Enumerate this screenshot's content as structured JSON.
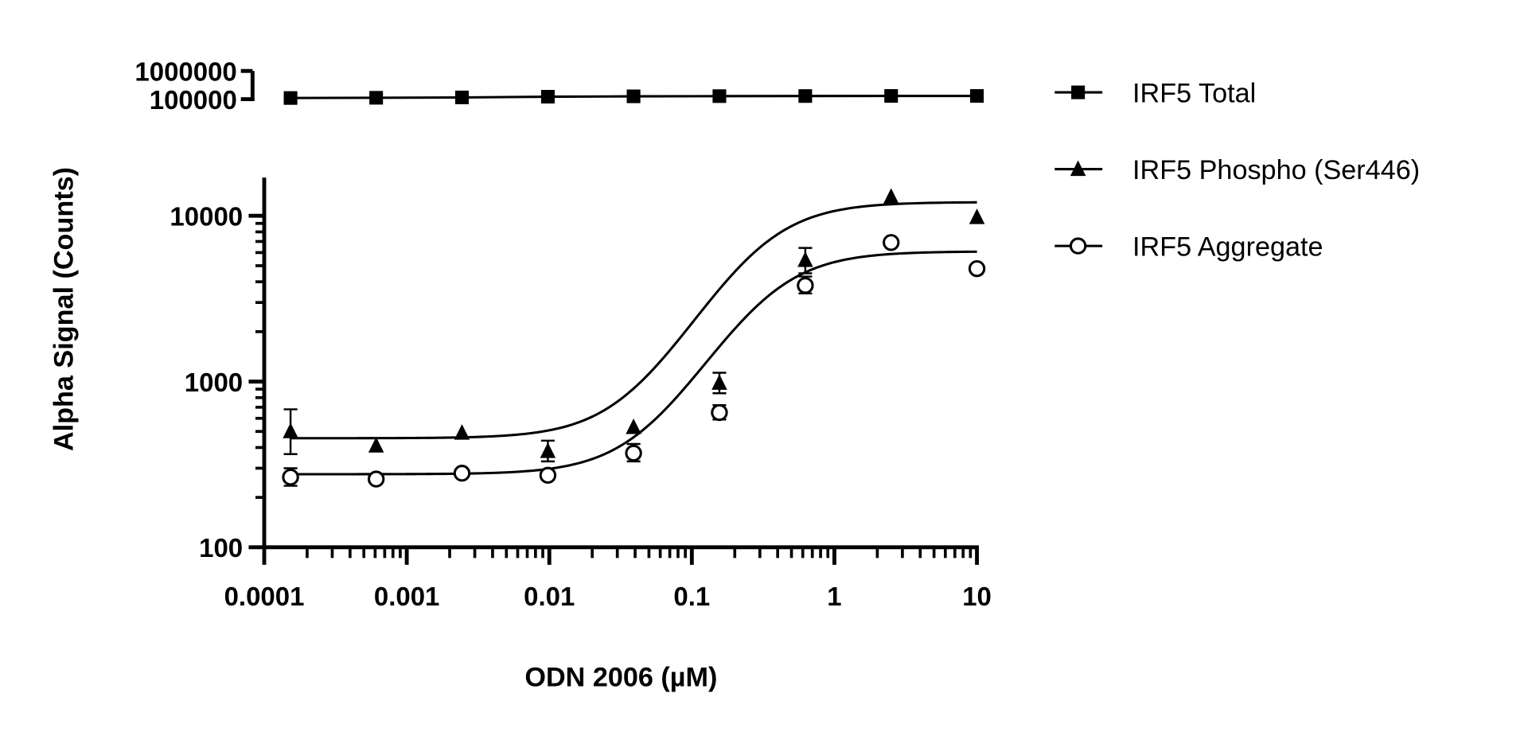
{
  "chart_data": {
    "type": "scatter",
    "xlabel": "ODN 2006 (µM)",
    "ylabel": "Alpha Signal (Counts)",
    "x_scale": "log",
    "y_scale": "log",
    "xlim": [
      0.0001,
      10
    ],
    "ylim": [
      100,
      17000
    ],
    "ylim_top_segment": [
      100000,
      1000000
    ],
    "x_tick_labels": [
      "0.0001",
      "0.001",
      "0.01",
      "0.1",
      "1",
      "10"
    ],
    "y_tick_labels": [
      "100",
      "1000",
      "10000"
    ],
    "y_top_tick_labels": [
      "100000",
      "1000000"
    ],
    "legend_placement": "right",
    "grid": false,
    "x": [
      0.000153,
      0.00061,
      0.00244,
      0.00977,
      0.039,
      0.156,
      0.625,
      2.5,
      10
    ],
    "series": [
      {
        "name": "IRF5 Total",
        "marker": "filled-square",
        "segment": "top",
        "values": [
          110000,
          112000,
          115000,
          122000,
          126000,
          128000,
          129000,
          130000,
          130000
        ],
        "fit": "line"
      },
      {
        "name": "IRF5 Phospho (Ser446)",
        "marker": "filled-triangle",
        "segment": "main",
        "values": [
          500,
          410,
          490,
          380,
          530,
          980,
          5400,
          13000,
          9800
        ],
        "err_low": [
          365,
          null,
          null,
          330,
          null,
          850,
          4500,
          null,
          null
        ],
        "err_high": [
          680,
          null,
          null,
          440,
          null,
          1130,
          6400,
          null,
          null
        ],
        "fit": {
          "bottom": 455,
          "top": 12100,
          "ec50": 0.29,
          "hill": 1.6
        }
      },
      {
        "name": "IRF5 Aggregate",
        "marker": "open-circle",
        "segment": "main",
        "values": [
          265,
          258,
          280,
          272,
          370,
          650,
          3800,
          6900,
          4800
        ],
        "err_low": [
          235,
          null,
          null,
          null,
          330,
          590,
          3400,
          null,
          null
        ],
        "err_high": [
          300,
          null,
          null,
          null,
          420,
          720,
          4300,
          null,
          null
        ],
        "fit": {
          "bottom": 276,
          "top": 6100,
          "ec50": 0.33,
          "hill": 1.6
        }
      }
    ]
  }
}
